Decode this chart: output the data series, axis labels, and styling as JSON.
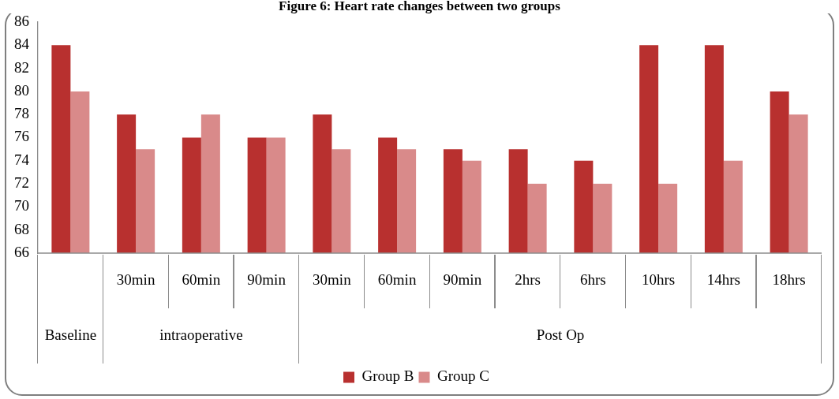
{
  "chart_data": {
    "type": "bar",
    "title": "Figure 6: Heart rate changes between two groups",
    "categories": [
      null,
      "30min",
      "60min",
      "90min",
      "30min",
      "60min",
      "90min",
      "2hrs",
      "6hrs",
      "10hrs",
      "14hrs",
      "18hrs"
    ],
    "series": [
      {
        "name": "Group B",
        "color": "#b8302f",
        "values": [
          84,
          78,
          76,
          76,
          78,
          76,
          75,
          75,
          74,
          84,
          84,
          80
        ]
      },
      {
        "name": "Group C",
        "color": "#d98a8a",
        "values": [
          80,
          75,
          78,
          76,
          75,
          75,
          74,
          72,
          72,
          72,
          74,
          78
        ]
      }
    ],
    "annotations": [
      "Baseline",
      "intraoperative",
      "Post Op"
    ],
    "ylim": [
      66,
      86
    ],
    "yticks": [
      66,
      68,
      70,
      72,
      74,
      76,
      78,
      80,
      82,
      84,
      86
    ],
    "grid": false,
    "legend": "bottom"
  }
}
